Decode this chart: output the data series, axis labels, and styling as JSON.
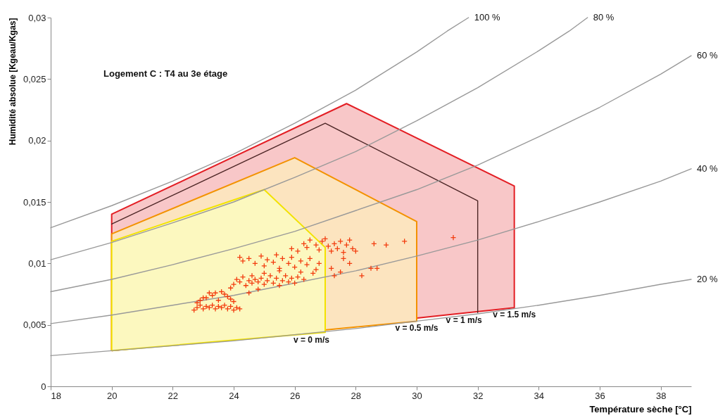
{
  "chart_data": {
    "type": "scatter",
    "xlabel": "Température sèche [°C]",
    "ylabel": "Humidité absolue [Kgeau/Kgas]",
    "annotations": [
      "Logement C : T4 au 3e étage"
    ],
    "xlim": [
      18,
      39
    ],
    "xticks": [
      18,
      20,
      22,
      24,
      26,
      28,
      30,
      32,
      34,
      36,
      38
    ],
    "ylim": [
      0,
      0.03
    ],
    "yticks": [
      0,
      {
        "value": 0.005,
        "label": "0,005"
      },
      {
        "value": 0.01,
        "label": "0,01"
      },
      {
        "value": 0.015,
        "label": "0,015"
      },
      {
        "value": 0.02,
        "label": "0,02"
      },
      {
        "value": 0.025,
        "label": "0,025"
      },
      {
        "value": 0.03,
        "label": "0,03"
      }
    ],
    "grid": false,
    "legend": false,
    "series": [
      {
        "name": "v = 1.5 m/s",
        "type": "area",
        "color": "#e31e24",
        "x": [
          20,
          20,
          27.7,
          33.2,
          33.2,
          20
        ],
        "values": [
          0.0029,
          0.014,
          0.023,
          0.0163,
          0.0064,
          0.0029
        ]
      },
      {
        "name": "v = 1 m/s",
        "type": "line",
        "color": "#4d2626",
        "x": [
          20,
          27,
          32,
          32
        ],
        "values": [
          0.0132,
          0.0214,
          0.0151,
          0.006
        ]
      },
      {
        "name": "v = 0.5 m/s",
        "type": "area",
        "color": "#f39200",
        "x": [
          20,
          20,
          26,
          30,
          30,
          20
        ],
        "values": [
          0.0029,
          0.0124,
          0.0186,
          0.0134,
          0.0053,
          0.0029
        ]
      },
      {
        "name": "v = 0 m/s",
        "type": "area",
        "color": "#f2e200",
        "x": [
          20,
          20,
          25,
          27,
          27,
          20
        ],
        "values": [
          0.0029,
          0.0118,
          0.016,
          0.0113,
          0.0044,
          0.0029
        ]
      },
      {
        "name": "100 %",
        "type": "line",
        "color": "#999999",
        "x": [
          18,
          20,
          22,
          24,
          26,
          28,
          30,
          31,
          31.7
        ],
        "values": [
          0.0129,
          0.0147,
          0.0167,
          0.0189,
          0.0214,
          0.0241,
          0.0272,
          0.0289,
          0.03
        ]
      },
      {
        "name": "80 %",
        "type": "line",
        "color": "#999999",
        "x": [
          18,
          20,
          22,
          24,
          26,
          28,
          30,
          32,
          34,
          35,
          35.6
        ],
        "values": [
          0.0103,
          0.0117,
          0.0133,
          0.015,
          0.017,
          0.0191,
          0.0216,
          0.0243,
          0.0273,
          0.0289,
          0.03
        ]
      },
      {
        "name": "60 %",
        "type": "line",
        "color": "#999999",
        "x": [
          18,
          20,
          22,
          24,
          26,
          28,
          30,
          32,
          34,
          36,
          38,
          39
        ],
        "values": [
          0.0077,
          0.0087,
          0.0099,
          0.0112,
          0.0126,
          0.0143,
          0.016,
          0.018,
          0.0203,
          0.0227,
          0.0254,
          0.0269
        ]
      },
      {
        "name": "40 %",
        "type": "line",
        "color": "#999999",
        "x": [
          18,
          20,
          22,
          24,
          26,
          28,
          30,
          32,
          34,
          36,
          38,
          39
        ],
        "values": [
          0.0051,
          0.0058,
          0.0066,
          0.0074,
          0.0084,
          0.0094,
          0.0106,
          0.0119,
          0.0134,
          0.015,
          0.0167,
          0.0177
        ]
      },
      {
        "name": "20 %",
        "type": "line",
        "color": "#999999",
        "x": [
          18,
          20,
          22,
          24,
          26,
          28,
          30,
          32,
          34,
          36,
          38,
          39
        ],
        "values": [
          0.0025,
          0.0029,
          0.0033,
          0.0037,
          0.0042,
          0.0047,
          0.0053,
          0.0059,
          0.0066,
          0.0074,
          0.0083,
          0.0087
        ]
      },
      {
        "marker": "cross",
        "color": "#f23c0f",
        "x": [
          22.7,
          22.8,
          22.8,
          22.9,
          23.0,
          23.1,
          23.2,
          23.3,
          23.4,
          23.5,
          23.6,
          23.7,
          23.8,
          23.9,
          24.0,
          24.1,
          24.2,
          22.9,
          23.0,
          23.1,
          23.3,
          23.4,
          23.6,
          23.7,
          23.8,
          23.9,
          24.0,
          23.5,
          23.2,
          23.9,
          24.0,
          24.1,
          24.2,
          24.3,
          24.4,
          24.5,
          24.6,
          24.6,
          24.7,
          24.8,
          24.8,
          24.9,
          25.0,
          25.1,
          25.2,
          25.3,
          25.4,
          25.5,
          25.6,
          25.7,
          25.8,
          25.9,
          26.0,
          26.1,
          26.2,
          24.5,
          25.0,
          25.5,
          26.3,
          24.2,
          24.3,
          24.5,
          24.7,
          24.9,
          25.0,
          25.1,
          25.3,
          25.4,
          25.5,
          25.6,
          25.8,
          25.9,
          26.0,
          26.2,
          26.4,
          26.5,
          26.7,
          26.8,
          26.6,
          25.9,
          26.1,
          26.3,
          26.4,
          26.5,
          26.7,
          26.8,
          26.9,
          27.0,
          27.1,
          27.2,
          27.3,
          27.4,
          27.5,
          27.6,
          27.7,
          27.8,
          27.9,
          28.0,
          27.6,
          27.3,
          27.5,
          27.2,
          27.8,
          28.2,
          28.5,
          28.7,
          28.6,
          29.0,
          29.6,
          31.2
        ],
        "values": [
          0.0062,
          0.0064,
          0.0068,
          0.0066,
          0.0063,
          0.0065,
          0.0064,
          0.0066,
          0.0063,
          0.0065,
          0.0064,
          0.0066,
          0.0063,
          0.0065,
          0.0062,
          0.0064,
          0.0063,
          0.007,
          0.0072,
          0.0072,
          0.0074,
          0.0076,
          0.0077,
          0.0075,
          0.0073,
          0.0071,
          0.0069,
          0.007,
          0.0076,
          0.008,
          0.0083,
          0.0087,
          0.0085,
          0.0089,
          0.0082,
          0.0086,
          0.0084,
          0.009,
          0.0087,
          0.0085,
          0.0079,
          0.0088,
          0.0083,
          0.0086,
          0.009,
          0.0084,
          0.0088,
          0.0082,
          0.0086,
          0.009,
          0.0085,
          0.0088,
          0.0084,
          0.0089,
          0.0093,
          0.0076,
          0.0092,
          0.0094,
          0.0087,
          0.0105,
          0.0102,
          0.0104,
          0.01,
          0.0106,
          0.0098,
          0.0103,
          0.0101,
          0.0107,
          0.0096,
          0.0104,
          0.01,
          0.0105,
          0.0097,
          0.0102,
          0.0099,
          0.0104,
          0.0095,
          0.01,
          0.0092,
          0.0112,
          0.011,
          0.0116,
          0.0113,
          0.0119,
          0.0115,
          0.0111,
          0.0118,
          0.012,
          0.0114,
          0.011,
          0.0116,
          0.0112,
          0.0118,
          0.0109,
          0.0115,
          0.0119,
          0.0112,
          0.011,
          0.0104,
          0.009,
          0.0093,
          0.0096,
          0.01,
          0.009,
          0.0096,
          0.0096,
          0.0116,
          0.0115,
          0.0118,
          0.0121
        ]
      }
    ]
  }
}
